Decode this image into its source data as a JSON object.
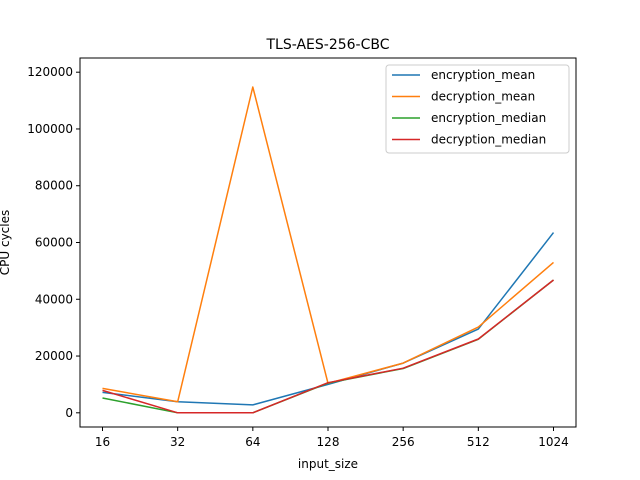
{
  "chart_data": {
    "type": "line",
    "title": "TLS-AES-256-CBC",
    "xlabel": "input_size",
    "ylabel": "CPU cycles",
    "categories": [
      "16",
      "32",
      "64",
      "128",
      "256",
      "512",
      "1024"
    ],
    "ylim": [
      -5000,
      125000
    ],
    "yticks": [
      0,
      20000,
      40000,
      60000,
      80000,
      100000,
      120000
    ],
    "grid": false,
    "legend_position": "top-right",
    "series": [
      {
        "name": "encryption_mean",
        "color": "#1f77b4",
        "values": [
          7200,
          3900,
          2800,
          10000,
          17500,
          29500,
          63500
        ]
      },
      {
        "name": "decryption_mean",
        "color": "#ff7f0e",
        "values": [
          8600,
          3900,
          114800,
          10400,
          17500,
          30200,
          53000
        ]
      },
      {
        "name": "encryption_median",
        "color": "#2ca02c",
        "values": [
          5200,
          0,
          0,
          10500,
          15600,
          25900,
          46800
        ]
      },
      {
        "name": "decryption_median",
        "color": "#d62728",
        "values": [
          7900,
          0,
          0,
          10600,
          15700,
          26000,
          46800
        ]
      }
    ]
  }
}
